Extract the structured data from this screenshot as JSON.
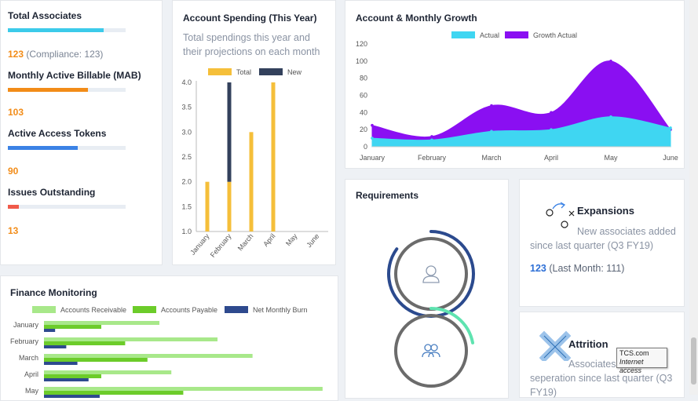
{
  "stats": [
    {
      "title": "Total Associates",
      "value": "123",
      "note": "(Compliance: 123)",
      "bar_color": "#3ccbea",
      "bar_fraction": 0.81
    },
    {
      "title": "Monthly Active Billable (MAB)",
      "value": "103",
      "note": "",
      "bar_color": "#f28c18",
      "bar_fraction": 0.68
    },
    {
      "title": "Active Access Tokens",
      "value": "90",
      "note": "",
      "bar_color": "#3b82e5",
      "bar_fraction": 0.59
    },
    {
      "title": "Issues Outstanding",
      "value": "13",
      "note": "",
      "bar_color": "#f05a4a",
      "bar_fraction": 0.09
    }
  ],
  "account_spending": {
    "title": "Account Spending (This Year)",
    "subtitle_line1": "Total spendings this year and",
    "subtitle_line2": "their projections on each month"
  },
  "account_growth": {
    "title": "Account & Monthly Growth"
  },
  "requirements": {
    "title": "Requirements"
  },
  "finance": {
    "title": "Finance Monitoring"
  },
  "expansions": {
    "title": "Expansions",
    "line1": "New associates added",
    "line2": "since last quarter (Q3 FY19)",
    "value": "123",
    "value_note": "(Last Month: 111)"
  },
  "attrition": {
    "title": "Attrition",
    "line1": "Associates l",
    "line2": "seperation since last quarter (Q3",
    "line3": "FY19)"
  },
  "tooltip": {
    "line1": "TCS.com",
    "line2": "Internet access"
  },
  "chart_data": [
    {
      "type": "bar",
      "title": "Account Spending (This Year)",
      "categories": [
        "January",
        "February",
        "March",
        "April",
        "May",
        "June"
      ],
      "series": [
        {
          "name": "Total",
          "color": "#f5bf3a",
          "values": [
            2.0,
            2.0,
            3.0,
            4.0,
            null,
            null
          ]
        },
        {
          "name": "New",
          "color": "#33415c",
          "values": [
            null,
            2.0,
            null,
            null,
            null,
            null
          ]
        }
      ],
      "stacked": true,
      "ylim": [
        1.0,
        4.0
      ],
      "yticks": [
        "1.0",
        "1.5",
        "2.0",
        "2.5",
        "3.0",
        "3.5",
        "4.0"
      ],
      "legend": "top"
    },
    {
      "type": "area",
      "title": "Account & Monthly Growth",
      "x": [
        "January",
        "February",
        "March",
        "April",
        "May",
        "June"
      ],
      "series": [
        {
          "name": "Actual",
          "color": "#3fd6f2",
          "values": [
            10,
            8,
            18,
            20,
            35,
            22
          ]
        },
        {
          "name": "Growth Actual",
          "color": "#8a0ff2",
          "values": [
            25,
            12,
            48,
            40,
            100,
            20
          ]
        }
      ],
      "ylim": [
        0,
        120
      ],
      "yticks": [
        0,
        20,
        40,
        60,
        80,
        100,
        120
      ],
      "legend": "top"
    },
    {
      "type": "bar",
      "orientation": "horizontal",
      "title": "Finance Monitoring",
      "categories": [
        "January",
        "February",
        "March",
        "April",
        "May"
      ],
      "series": [
        {
          "name": "Accounts Receivable",
          "color": "#a8e88a",
          "values": [
            145,
            218,
            262,
            160,
            350
          ]
        },
        {
          "name": "Accounts Payable",
          "color": "#6ccc2a",
          "values": [
            72,
            102,
            130,
            72,
            175
          ]
        },
        {
          "name": "Net Monthly Burn",
          "color": "#2e4a8e",
          "values": [
            14,
            28,
            42,
            56,
            70
          ]
        }
      ],
      "legend": "top"
    }
  ],
  "requirements_gauges": [
    {
      "icon": "person-icon",
      "ring_color": "#2b4a8e",
      "fraction": 0.85
    },
    {
      "icon": "group-icon",
      "ring_color": "#5fe3b0",
      "fraction": 0.22
    }
  ]
}
